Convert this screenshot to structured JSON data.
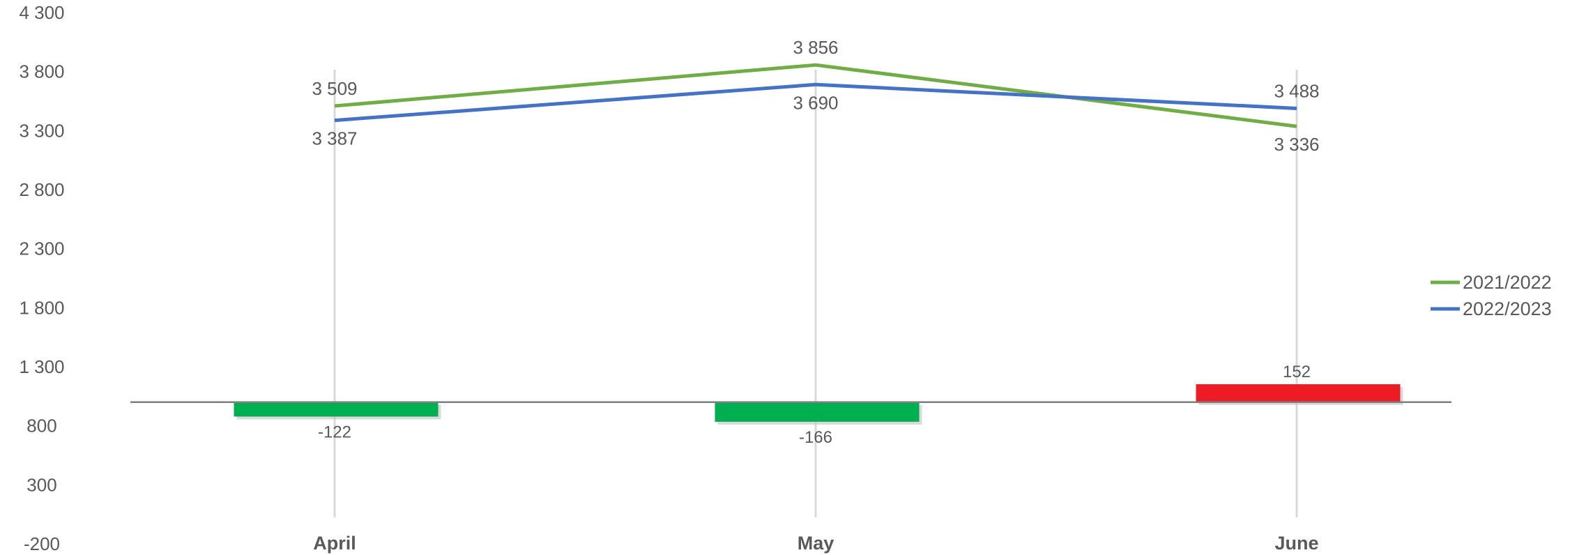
{
  "chart_data": {
    "type": "line",
    "categories": [
      "April",
      "May",
      "June"
    ],
    "y_ticks": [
      "4 300",
      "3 800",
      "3 300",
      "2 800",
      "2 300",
      "1 800",
      "1 300",
      "800",
      "300",
      "-200"
    ],
    "ylim": [
      -200,
      4300
    ],
    "grid": false,
    "legend_position": "right",
    "series": [
      {
        "name": "2021/2022",
        "type": "line",
        "color": "#70AD47",
        "values": [
          3509,
          3856,
          3336
        ],
        "labels": [
          "3 509",
          "3 856",
          "3 336"
        ]
      },
      {
        "name": "2022/2023",
        "type": "line",
        "color": "#4472C4",
        "values": [
          3387,
          3690,
          3488
        ],
        "labels": [
          "3 387",
          "3 690",
          "3 488"
        ]
      },
      {
        "type": "bar",
        "values": [
          -122,
          -166,
          152
        ],
        "labels": [
          "-122",
          "-166",
          "152"
        ],
        "colors": [
          "#00B050",
          "#00B050",
          "#ED1C24"
        ]
      }
    ],
    "bar_baseline_value": 1000
  }
}
